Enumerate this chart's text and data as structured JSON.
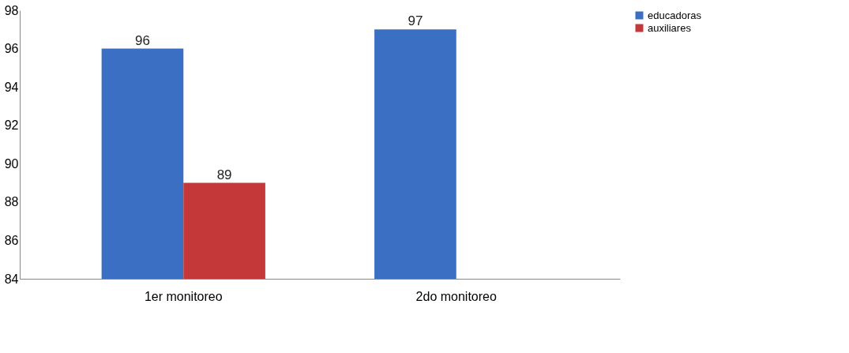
{
  "chart_data": {
    "type": "bar",
    "categories": [
      "1er monitoreo",
      "2do monitoreo"
    ],
    "series": [
      {
        "name": "educadoras",
        "color": "#3a6fc4",
        "values": [
          96,
          97
        ]
      },
      {
        "name": "auxiliares",
        "color": "#c4383a",
        "values": [
          89,
          null
        ]
      }
    ],
    "ylim": [
      84,
      98
    ],
    "yticks": [
      84,
      86,
      88,
      90,
      92,
      94,
      96,
      98
    ],
    "grid": false,
    "legend": "right",
    "data_labels": true
  }
}
